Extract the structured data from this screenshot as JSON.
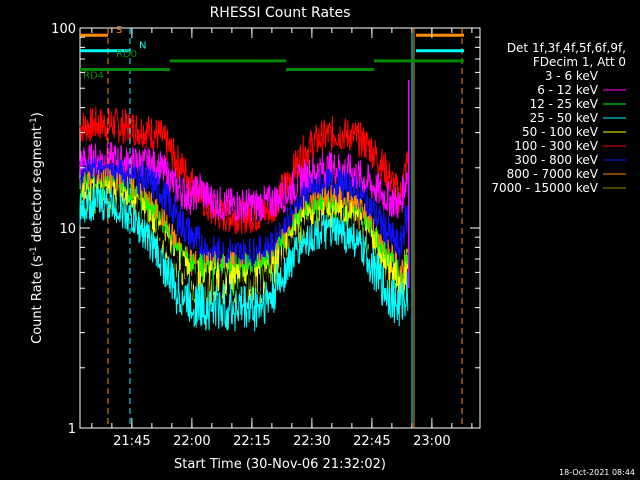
{
  "chart_data": {
    "type": "line",
    "title": "RHESSI Count Rates",
    "xlabel": "Start Time (30-Nov-06 21:32:02)",
    "ylabel_parts": {
      "main": "Count Rate (s",
      "sup1": "-1",
      "mid": " detector segment",
      "sup2": "-1",
      "end": ")"
    },
    "y_scale": "log",
    "ylim": [
      1,
      100
    ],
    "y_ticks": [
      {
        "value": 1,
        "label": "1"
      },
      {
        "value": 10,
        "label": "10"
      },
      {
        "value": 100,
        "label": "100"
      }
    ],
    "x_unit": "minutes after 21:32:02",
    "xlim": [
      0,
      100
    ],
    "x_ticks": [
      {
        "value": 12.97,
        "label": "21:45"
      },
      {
        "value": 27.97,
        "label": "22:00"
      },
      {
        "value": 42.97,
        "label": "22:15"
      },
      {
        "value": 57.97,
        "label": "22:30"
      },
      {
        "value": 72.97,
        "label": "22:45"
      },
      {
        "value": 87.97,
        "label": "23:00"
      }
    ],
    "legend_header": [
      "Det 1f,3f,4f,5f,6f,9f,",
      "FDecim 1, Att 0"
    ],
    "legend_position": "right",
    "series": [
      {
        "name": "3 - 6 keV",
        "color": "#ffffff",
        "draw_color": "#000000",
        "x": [
          0,
          4,
          8,
          12,
          16,
          20,
          24,
          28,
          32,
          36,
          40,
          44,
          48,
          52,
          56,
          60,
          64,
          68,
          72,
          76,
          80,
          82
        ],
        "y": [
          13,
          14,
          13.5,
          12.5,
          11,
          9,
          6.5,
          5.2,
          5,
          5,
          5,
          5,
          5.3,
          7.5,
          9.5,
          10.5,
          10.5,
          10,
          8,
          5.5,
          3.5,
          5
        ]
      },
      {
        "name": "6 - 12 keV",
        "color": "#ff00ff",
        "x": [
          0,
          4,
          8,
          12,
          16,
          20,
          24,
          28,
          30,
          32,
          36,
          40,
          44,
          48,
          52,
          56,
          60,
          64,
          68,
          72,
          76,
          80,
          82
        ],
        "y": [
          21,
          22,
          22,
          21,
          21,
          20,
          16,
          14,
          16,
          14,
          13,
          13,
          13,
          13.5,
          15,
          18,
          19.5,
          20,
          19,
          17,
          14.5,
          13,
          19
        ]
      },
      {
        "name": "12 - 25 keV",
        "color": "#00ff00",
        "x": [
          0,
          4,
          8,
          12,
          16,
          20,
          24,
          28,
          32,
          36,
          40,
          44,
          48,
          52,
          56,
          60,
          64,
          68,
          72,
          76,
          80,
          82
        ],
        "y": [
          15,
          15.5,
          15,
          14,
          12.5,
          10,
          7.5,
          6,
          5.8,
          5.8,
          5.8,
          5.8,
          6.2,
          8.5,
          11,
          12,
          12,
          11.5,
          9.5,
          7,
          5.2,
          6.5
        ]
      },
      {
        "name": "25 - 50 keV",
        "color": "#00ffff",
        "x": [
          0,
          4,
          8,
          12,
          16,
          20,
          24,
          28,
          32,
          36,
          40,
          44,
          48,
          52,
          56,
          60,
          64,
          68,
          72,
          76,
          80,
          82
        ],
        "y": [
          12.5,
          13.5,
          13,
          11.5,
          9.5,
          7,
          4.8,
          4.2,
          4,
          4,
          4,
          4,
          4.5,
          6.5,
          8.5,
          9.5,
          9.5,
          9,
          7,
          5,
          4,
          5
        ]
      },
      {
        "name": "50 - 100 keV",
        "color": "#ffff00",
        "x": [
          0,
          4,
          8,
          12,
          16,
          20,
          24,
          28,
          32,
          36,
          40,
          44,
          48,
          52,
          56,
          60,
          64,
          68,
          72,
          76,
          80,
          82
        ],
        "y": [
          14,
          14.5,
          14,
          13,
          11.5,
          9,
          6.8,
          5.5,
          5.3,
          5.3,
          5.3,
          5.3,
          5.7,
          8,
          10.5,
          11.5,
          11.5,
          11,
          9,
          6.5,
          4.8,
          6
        ]
      },
      {
        "name": "100 - 300 keV",
        "color": "#ff0000",
        "x": [
          0,
          4,
          8,
          12,
          16,
          20,
          24,
          28,
          32,
          36,
          40,
          44,
          48,
          52,
          56,
          60,
          64,
          68,
          72,
          76,
          80,
          82
        ],
        "y": [
          32,
          33,
          33,
          32,
          31,
          29,
          22,
          17,
          12.5,
          11.5,
          11.5,
          11.5,
          12.5,
          17,
          24,
          28,
          30,
          29,
          26,
          20,
          14,
          22
        ]
      },
      {
        "name": "300 - 800 keV",
        "color": "#0000ff",
        "draw_color": "#1010ff",
        "x": [
          0,
          4,
          8,
          12,
          16,
          20,
          24,
          28,
          32,
          36,
          40,
          44,
          48,
          52,
          56,
          60,
          64,
          68,
          72,
          76,
          80,
          82
        ],
        "y": [
          18,
          18.5,
          18.5,
          18,
          17.5,
          15.5,
          11.5,
          9,
          7.5,
          7.3,
          7.3,
          7.3,
          7.8,
          10.5,
          14,
          16,
          16.5,
          15.5,
          13,
          10,
          7.8,
          12
        ]
      },
      {
        "name": "800 - 7000 keV",
        "color": "#ff8c00",
        "x": [
          0,
          4,
          8,
          12,
          16,
          20,
          24,
          28,
          32,
          36,
          40,
          44,
          48,
          52,
          56,
          60,
          64,
          68,
          72,
          76,
          80,
          82
        ],
        "y": [
          16,
          16.5,
          16,
          15,
          13.5,
          11,
          8,
          6.3,
          6,
          6,
          6,
          6,
          6.4,
          9,
          12,
          13.5,
          13.5,
          12.5,
          10.5,
          7.5,
          5.8,
          7
        ]
      },
      {
        "name": "7000 - 15000 keV",
        "color": "#8b8b00",
        "x": [],
        "y": []
      }
    ],
    "spikes": [
      {
        "x": 82.2,
        "y_bottom": 5,
        "y_top": 55,
        "color": "#ff00ff"
      }
    ],
    "vertical_lines": [
      {
        "x": 7.0,
        "color": "#ff8c00",
        "style": "dashed"
      },
      {
        "x": 12.5,
        "color": "#00ffff",
        "style": "dashed"
      },
      {
        "x": 83.0,
        "color": "#00ffff",
        "style": "solid"
      },
      {
        "x": 83.5,
        "color": "#ff8c00",
        "style": "solid"
      },
      {
        "x": 95.5,
        "color": "#ff8c00",
        "style": "dashed"
      }
    ],
    "state_bars": [
      {
        "label": "S",
        "color": "#ff8c00",
        "segments": [
          [
            0,
            7
          ],
          [
            84,
            96
          ]
        ],
        "y": 92
      },
      {
        "label": "N",
        "color": "#00ffff",
        "segments": [
          [
            0,
            12.5
          ],
          [
            84,
            96
          ]
        ],
        "y": 77
      },
      {
        "label": "RD0",
        "color": "#008800",
        "segments": [
          [
            22.5,
            51.5
          ],
          [
            73.5,
            96
          ]
        ],
        "y": 68.5
      },
      {
        "label": "RD4",
        "color": "#008800",
        "segments": [
          [
            0,
            22.5
          ],
          [
            51.5,
            73.5
          ]
        ],
        "y": 62
      }
    ],
    "footer": "18-Oct-2021 08:44"
  }
}
